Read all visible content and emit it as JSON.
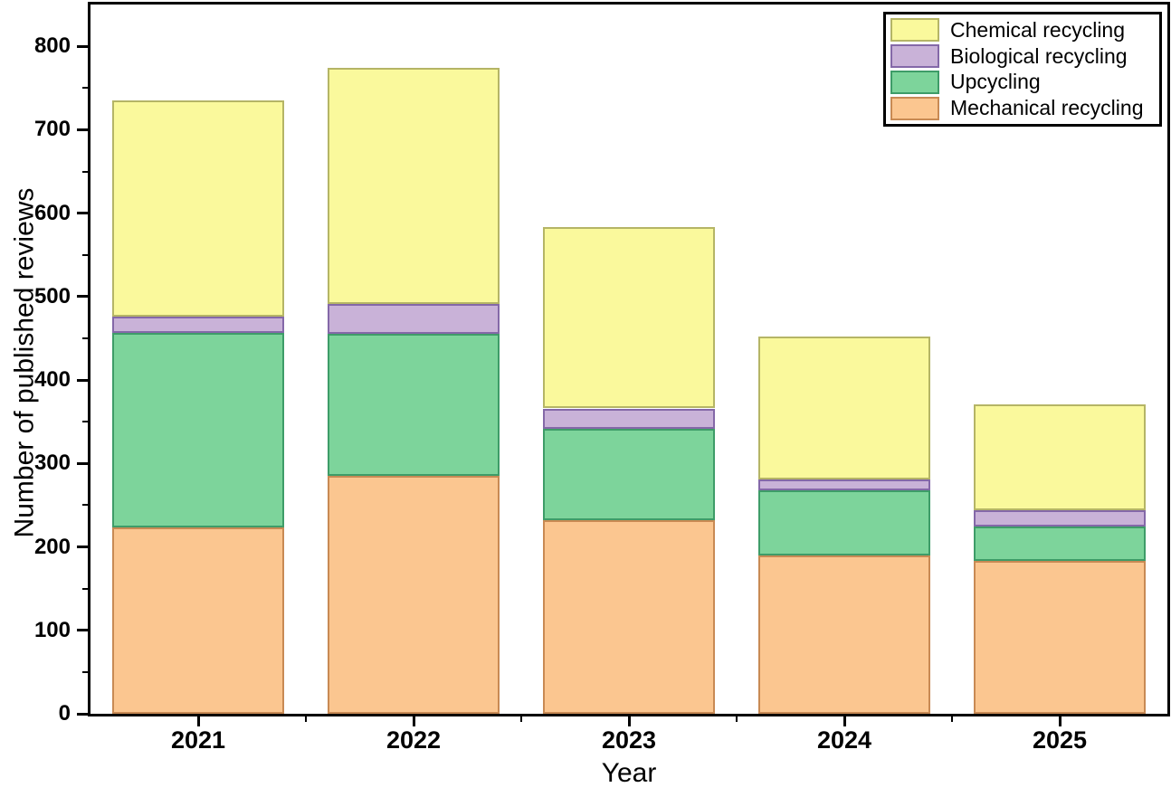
{
  "chart_data": {
    "type": "bar",
    "stacked": true,
    "title": "",
    "xlabel": "Year",
    "ylabel": "Number of published reviews",
    "categories": [
      "2021",
      "2022",
      "2023",
      "2024",
      "2025"
    ],
    "series": [
      {
        "name": "Mechanical recycling",
        "fill": "#FBC690",
        "border": "#C8archive",
        "values": [
          223,
          285,
          232,
          190,
          183
        ]
      },
      {
        "name": "Upcycling",
        "fill": "#7DD49B",
        "border": "#3E9C68",
        "values": [
          233,
          170,
          110,
          78,
          42
        ]
      },
      {
        "name": "Biological recycling",
        "fill": "#C9B2D8",
        "border": "#8468A8",
        "values": [
          20,
          36,
          24,
          13,
          19
        ]
      },
      {
        "name": "Chemical recycling",
        "fill": "#FAF99C",
        "border": "#B5B566",
        "values": [
          259,
          283,
          217,
          171,
          127
        ]
      }
    ],
    "totals": [
      735,
      774,
      583,
      452,
      371
    ],
    "ylim": [
      0,
      850
    ],
    "yticks": [
      0,
      100,
      200,
      300,
      400,
      500,
      600,
      700,
      800
    ],
    "y_minor_interval": 50,
    "legend_position": "top-right",
    "legend_order_top_to_bottom": [
      "Chemical recycling",
      "Biological recycling",
      "Upcycling",
      "Mechanical recycling"
    ],
    "grid": false,
    "axis_color": "#000000",
    "background_color": "#FFFFFF"
  }
}
